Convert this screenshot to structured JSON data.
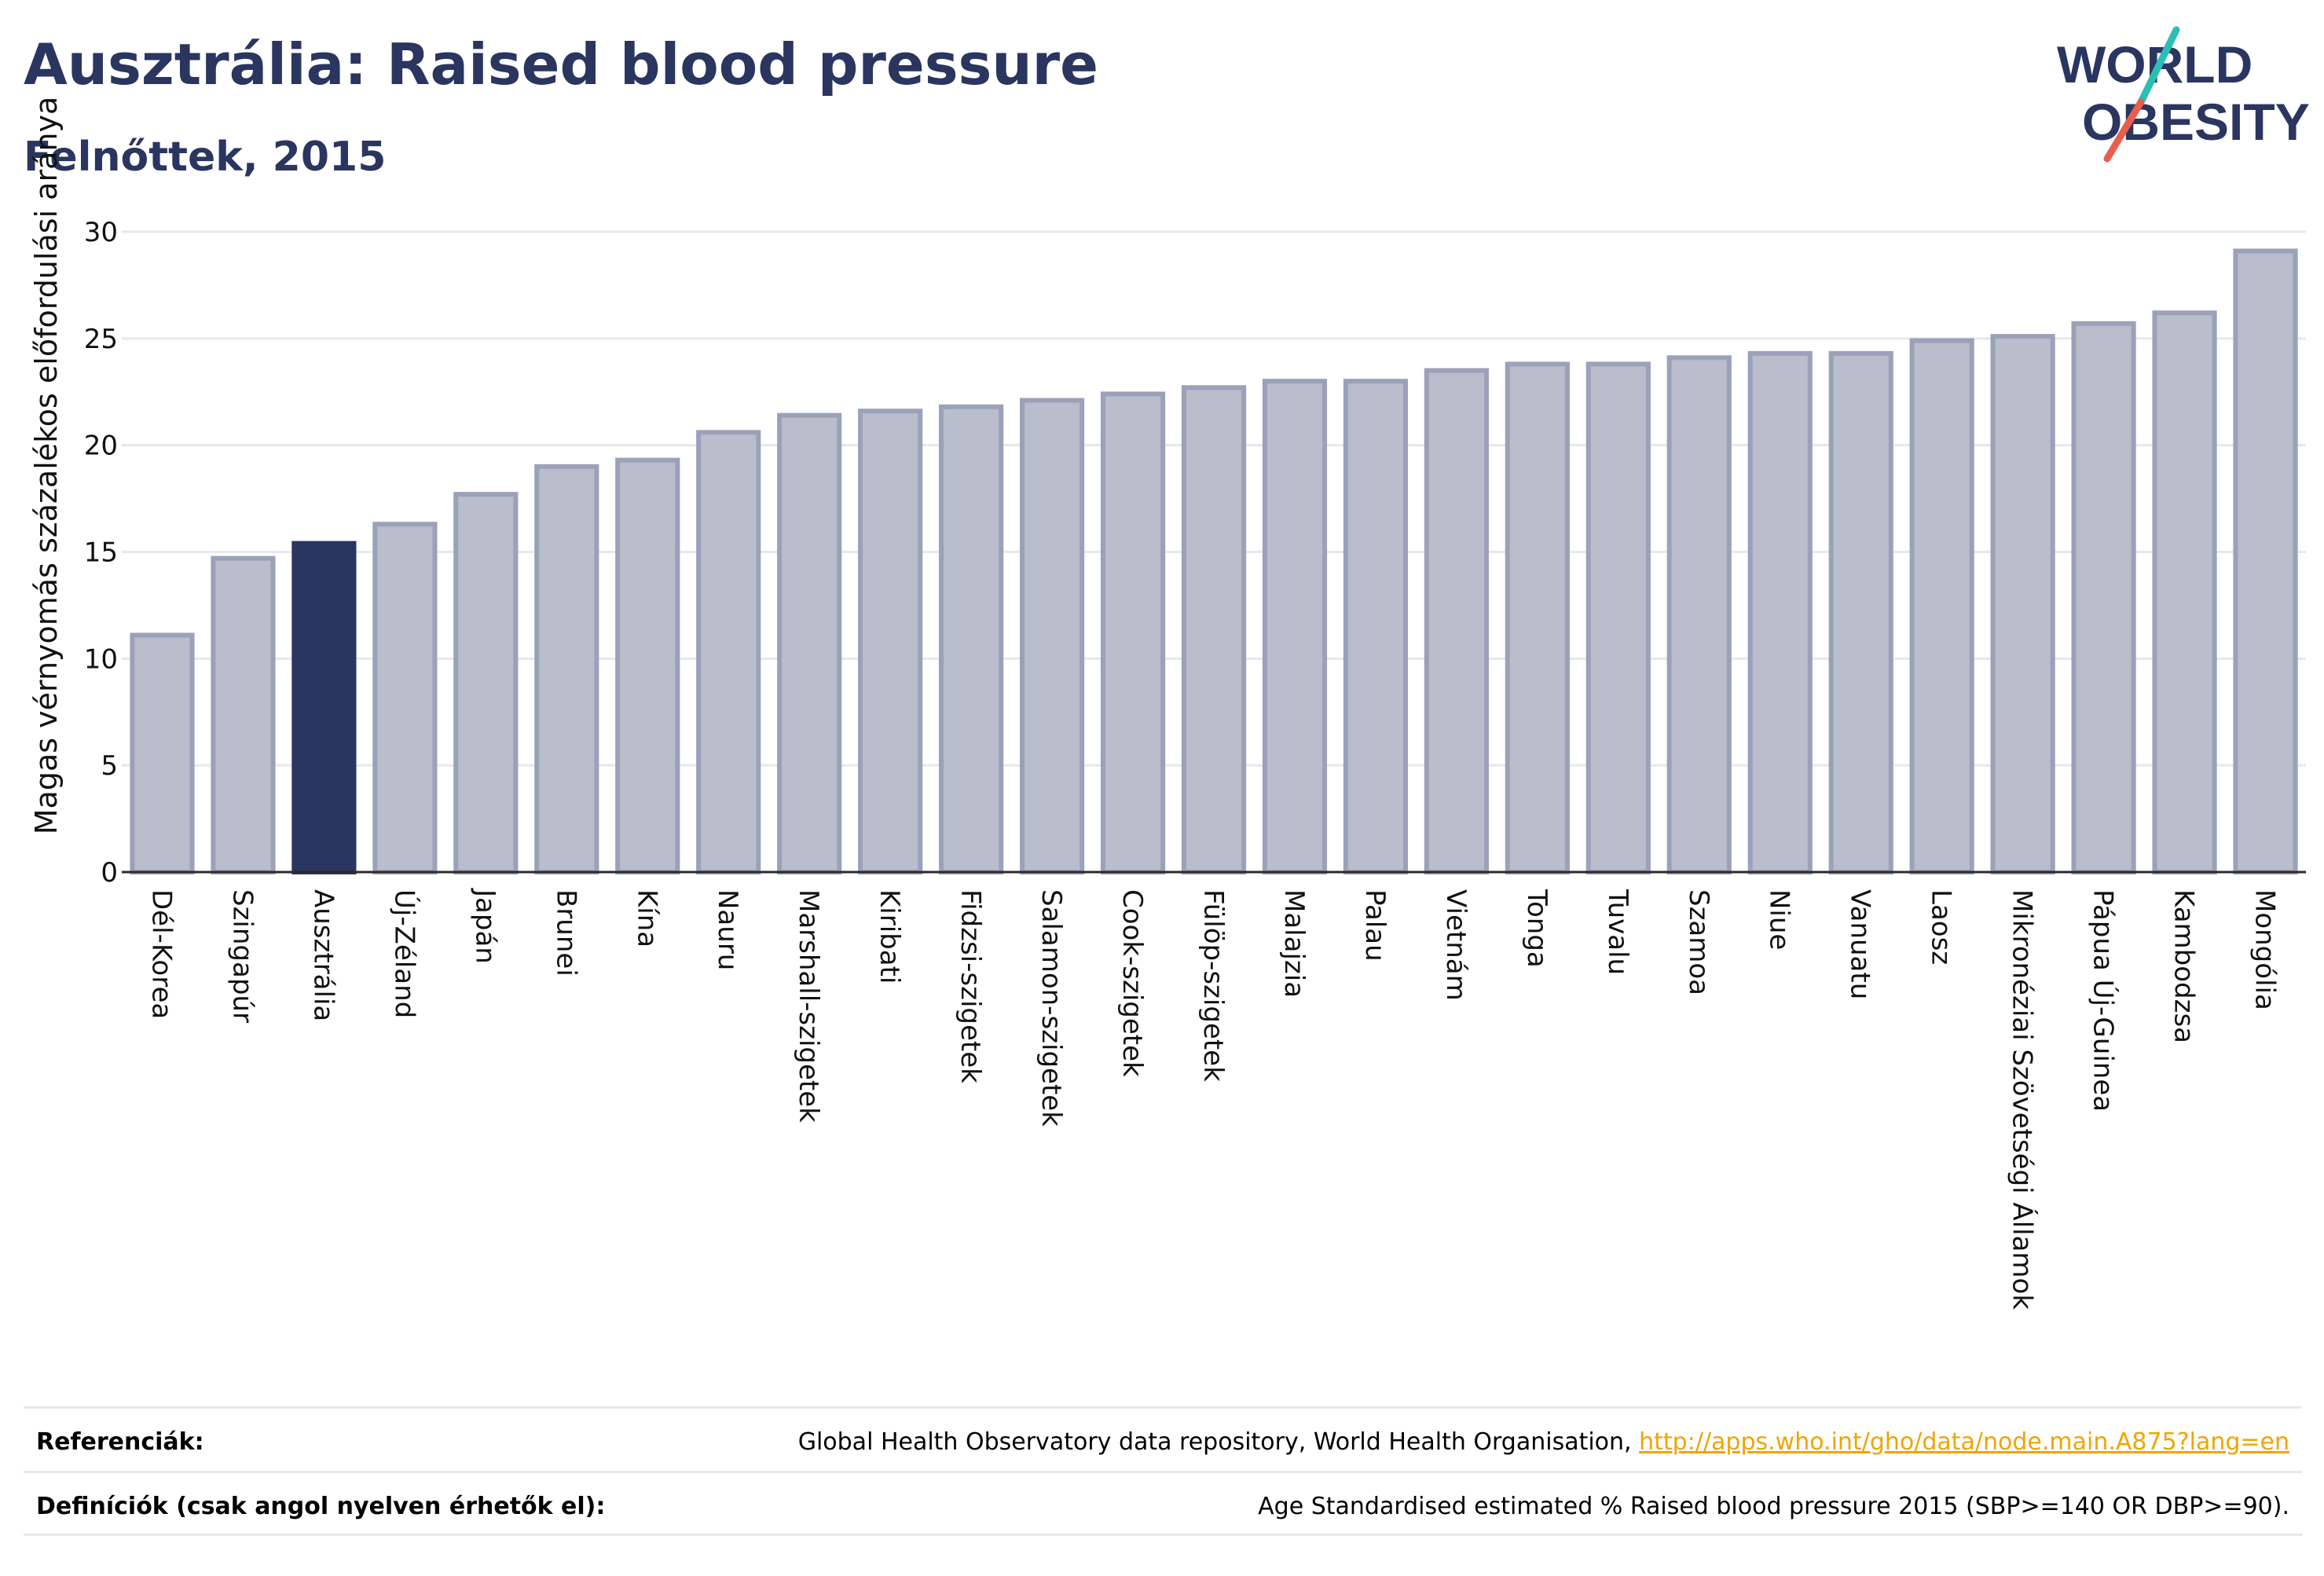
{
  "header": {
    "title": "Ausztrália: Raised blood pressure",
    "subtitle": "Felnőttek, 2015"
  },
  "logo": {
    "line1": "WORLD",
    "line2": "OBESITY",
    "colors": {
      "text": "#2a3560",
      "slash_top": "#2bbfb3",
      "slash_bottom": "#e8604c"
    }
  },
  "colors": {
    "bar": "#b9bdcc",
    "bar_stroke": "#9aa1b9",
    "highlight": "#2a3560",
    "grid": "#e6e8ee",
    "axis": "#2a2a2a"
  },
  "chart_data": {
    "type": "bar",
    "title": "Ausztrália: Raised blood pressure",
    "subtitle": "Felnőttek, 2015",
    "xlabel": "",
    "ylabel": "Magas vérnyomás százalékos előfordulási aránya",
    "ylim": [
      0,
      30
    ],
    "yticks": [
      0,
      5,
      10,
      15,
      20,
      25,
      30
    ],
    "grid": true,
    "highlight": "Ausztrália",
    "categories": [
      "Dél-Korea",
      "Szingapúr",
      "Ausztrália",
      "Új-Zéland",
      "Japán",
      "Brunei",
      "Kína",
      "Nauru",
      "Marshall-szigetek",
      "Kiribati",
      "Fidzsi-szigetek",
      "Salamon-szigetek",
      "Cook-szigetek",
      "Fülöp-szigetek",
      "Malajzia",
      "Palau",
      "Vietnám",
      "Tonga",
      "Tuvalu",
      "Szamoa",
      "Niue",
      "Vanuatu",
      "Laosz",
      "Mikronéziai Szövetségi Államok",
      "Pápua Új-Guinea",
      "Kambodzsa",
      "Mongólia"
    ],
    "values": [
      11.1,
      14.7,
      15.4,
      16.3,
      17.7,
      19.0,
      19.3,
      20.6,
      21.4,
      21.6,
      21.8,
      22.1,
      22.4,
      22.7,
      23.0,
      23.0,
      23.5,
      23.8,
      23.8,
      24.1,
      24.3,
      24.3,
      24.9,
      25.1,
      25.7,
      26.2,
      29.1
    ]
  },
  "footer": {
    "references_label": "Referenciák:",
    "references_text": "Global Health Observatory data repository, World Health Organisation,",
    "references_link": "http://apps.who.int/gho/data/node.main.A875?lang=en",
    "definitions_label": "Definíciók (csak angol nyelven érhetők el):",
    "definitions_text": "Age Standardised estimated % Raised blood pressure 2015 (SBP>=140 OR DBP>=90)."
  }
}
